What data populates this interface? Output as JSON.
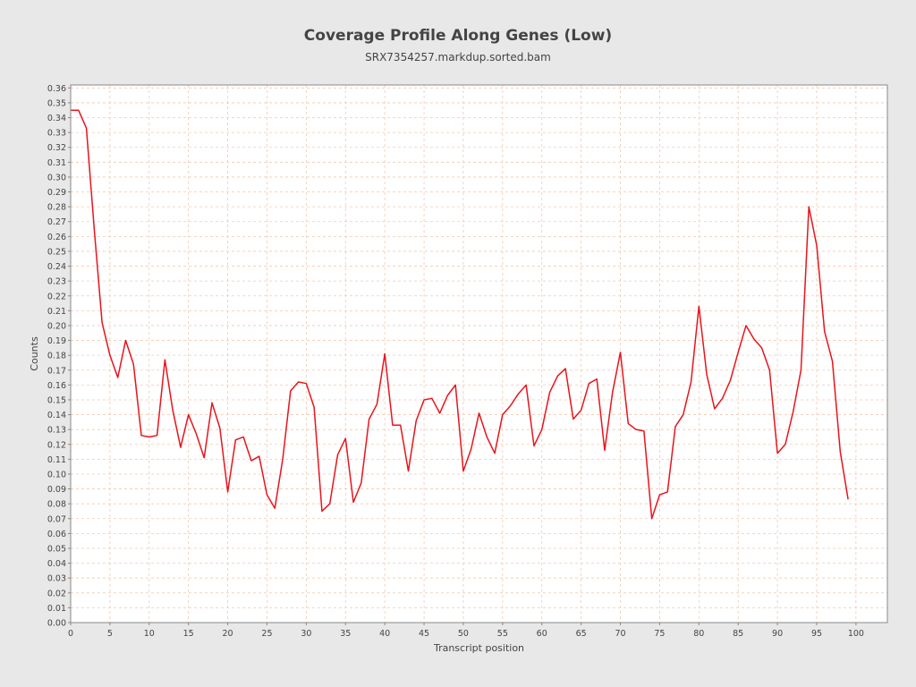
{
  "chart_data": {
    "type": "line",
    "title": "Coverage Profile Along Genes (Low)",
    "subtitle": "SRX7354257.markdup.sorted.bam",
    "xlabel": "Transcript position",
    "ylabel": "Counts",
    "xlim": [
      0,
      104
    ],
    "ylim": [
      0,
      0.362
    ],
    "x_ticks": [
      0,
      5,
      10,
      15,
      20,
      25,
      30,
      35,
      40,
      45,
      50,
      55,
      60,
      65,
      70,
      75,
      80,
      85,
      90,
      95,
      100
    ],
    "y_ticks": [
      "0.00",
      "0.01",
      "0.02",
      "0.03",
      "0.04",
      "0.05",
      "0.06",
      "0.07",
      "0.08",
      "0.09",
      "0.10",
      "0.11",
      "0.12",
      "0.13",
      "0.14",
      "0.15",
      "0.16",
      "0.17",
      "0.18",
      "0.19",
      "0.20",
      "0.21",
      "0.22",
      "0.23",
      "0.24",
      "0.25",
      "0.26",
      "0.27",
      "0.28",
      "0.29",
      "0.30",
      "0.31",
      "0.32",
      "0.33",
      "0.34",
      "0.35",
      "0.36"
    ],
    "grid": true,
    "legend": "none",
    "series": [
      {
        "color": "#e8141c",
        "x": [
          0,
          1,
          2,
          3,
          4,
          5,
          6,
          7,
          8,
          9,
          10,
          11,
          12,
          13,
          14,
          15,
          16,
          17,
          18,
          19,
          20,
          21,
          22,
          23,
          24,
          25,
          26,
          27,
          28,
          29,
          30,
          31,
          32,
          33,
          34,
          35,
          36,
          37,
          38,
          39,
          40,
          41,
          42,
          43,
          44,
          45,
          46,
          47,
          48,
          49,
          50,
          51,
          52,
          53,
          54,
          55,
          56,
          57,
          58,
          59,
          60,
          61,
          62,
          63,
          64,
          65,
          66,
          67,
          68,
          69,
          70,
          71,
          72,
          73,
          74,
          75,
          76,
          77,
          78,
          79,
          80,
          81,
          82,
          83,
          84,
          85,
          86,
          87,
          88,
          89,
          90,
          91,
          92,
          93,
          94,
          95,
          96,
          97,
          98,
          99
        ],
        "y": [
          0.345,
          0.345,
          0.333,
          0.265,
          0.202,
          0.18,
          0.165,
          0.19,
          0.174,
          0.126,
          0.125,
          0.126,
          0.177,
          0.143,
          0.118,
          0.14,
          0.127,
          0.111,
          0.148,
          0.131,
          0.088,
          0.123,
          0.125,
          0.109,
          0.112,
          0.086,
          0.077,
          0.11,
          0.156,
          0.162,
          0.161,
          0.145,
          0.075,
          0.08,
          0.113,
          0.124,
          0.081,
          0.094,
          0.137,
          0.147,
          0.181,
          0.133,
          0.133,
          0.102,
          0.136,
          0.15,
          0.151,
          0.141,
          0.153,
          0.16,
          0.102,
          0.117,
          0.141,
          0.125,
          0.114,
          0.14,
          0.146,
          0.154,
          0.16,
          0.119,
          0.13,
          0.155,
          0.166,
          0.171,
          0.137,
          0.143,
          0.161,
          0.164,
          0.116,
          0.155,
          0.182,
          0.134,
          0.13,
          0.129,
          0.07,
          0.086,
          0.088,
          0.132,
          0.14,
          0.162,
          0.213,
          0.167,
          0.144,
          0.151,
          0.163,
          0.182,
          0.2,
          0.191,
          0.185,
          0.17,
          0.114,
          0.12,
          0.142,
          0.17,
          0.28,
          0.254,
          0.196,
          0.176,
          0.115,
          0.083
        ]
      }
    ]
  }
}
